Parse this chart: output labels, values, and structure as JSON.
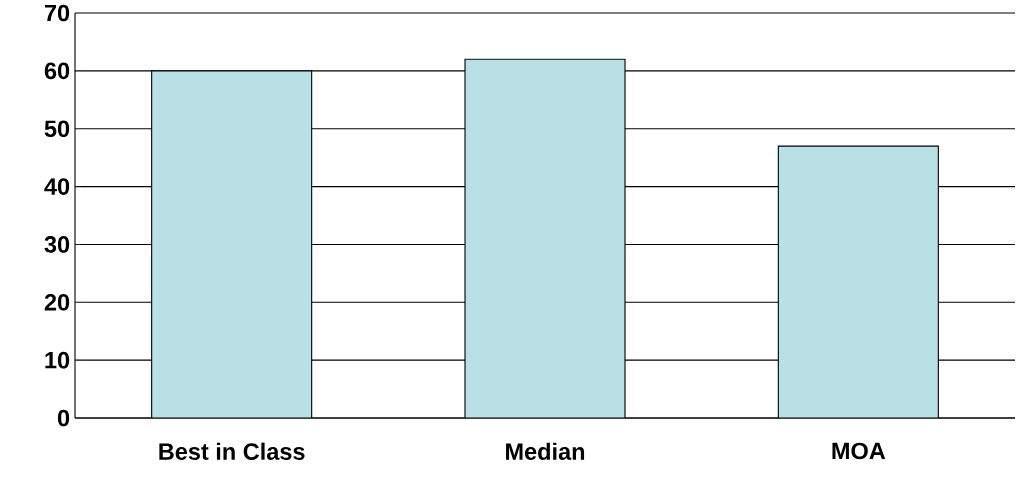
{
  "chart_data": {
    "type": "bar",
    "categories": [
      "Best in Class",
      "Median",
      "MOA"
    ],
    "values": [
      60,
      62,
      47
    ],
    "color": "#b9e0e4",
    "ylim": [
      0,
      70
    ],
    "yticks": [
      0,
      10,
      20,
      30,
      40,
      50,
      60,
      70
    ],
    "grid": "y"
  }
}
